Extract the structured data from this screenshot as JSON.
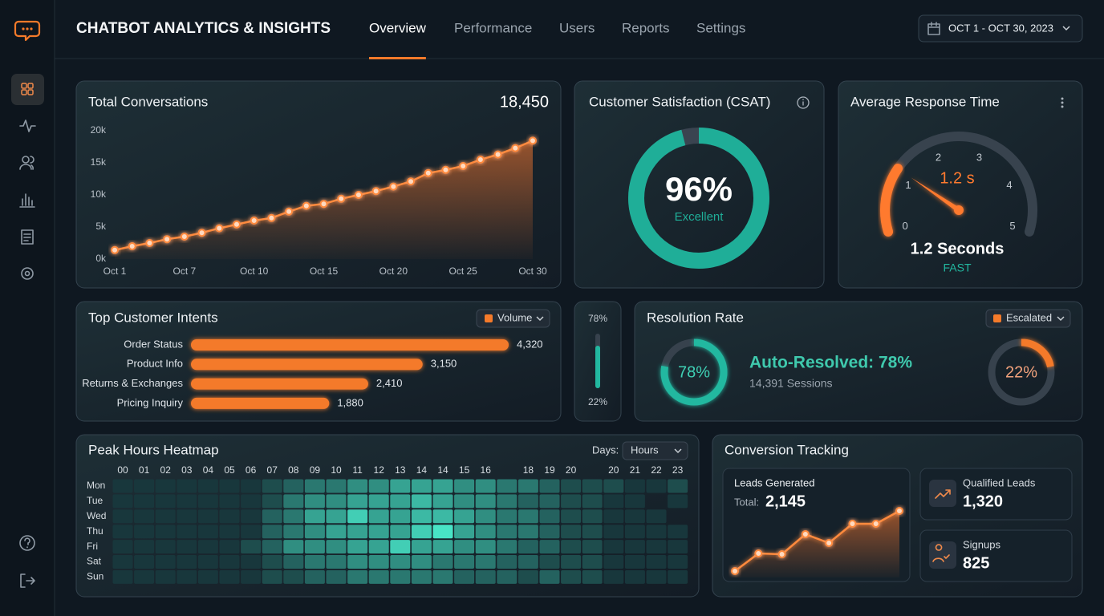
{
  "header": {
    "title": "CHATBOT ANALYTICS & INSIGHTS",
    "tabs": [
      "Overview",
      "Performance",
      "Users",
      "Reports",
      "Settings"
    ],
    "date_range": "OCT 1 - OCT 30, 2023"
  },
  "chart_data": [
    {
      "type": "line",
      "title": "Total Conversations",
      "headline": "18,450",
      "color": "#ff8a3d",
      "categories": [
        "Oct 1",
        null,
        null,
        null,
        "Oct 7",
        null,
        null,
        null,
        "Oct 10",
        null,
        null,
        null,
        "Oct 15",
        null,
        null,
        null,
        "Oct 20",
        null,
        null,
        null,
        "Oct 25",
        null,
        null,
        null,
        "Oct 30"
      ],
      "values": [
        1400,
        2000,
        2500,
        3100,
        3500,
        4100,
        4800,
        5400,
        6000,
        6400,
        7400,
        8300,
        8600,
        9400,
        10000,
        10600,
        11300,
        12100,
        13400,
        13900,
        14500,
        15500,
        16300,
        17300,
        18450
      ],
      "ylim": [
        0,
        20000
      ],
      "yticks": [
        {
          "value": 0,
          "label": "0k"
        },
        {
          "value": 5000,
          "label": "5k"
        },
        {
          "value": 10000,
          "label": "10k"
        },
        {
          "value": 15000,
          "label": "15k"
        },
        {
          "value": 20000,
          "label": "20k"
        }
      ],
      "grid": false
    },
    {
      "type": "donut",
      "title": "Customer Satisfaction (CSAT)",
      "values": [
        96
      ],
      "value_labels": [
        "96%"
      ],
      "caption": "Excellent",
      "ylim": [
        0,
        100
      ],
      "color": "#1fae98"
    },
    {
      "type": "gauge",
      "title": "Average Response Time",
      "values": [
        1.2
      ],
      "value_labels": [
        "1.2 s"
      ],
      "caption": "1.2 Seconds",
      "status": "FAST",
      "xlim": [
        0,
        5
      ],
      "xticks": [
        0,
        1,
        2,
        3,
        4,
        5
      ],
      "color": "#ff7a2f"
    },
    {
      "type": "hbar",
      "title": "Top Customer Intents",
      "filter": "Volume",
      "categories": [
        "Order Status",
        "Product Info",
        "Returns & Exchanges",
        "Pricing Inquiry"
      ],
      "values": [
        4320,
        3150,
        2410,
        1880
      ],
      "value_labels": [
        "4,320",
        "3,150",
        "2,410",
        "1,880"
      ],
      "color": "#f47a2a"
    },
    {
      "type": "split",
      "title": "Resolution Rate",
      "filter": "Escalated",
      "headline": "Auto-Resolved: 78%",
      "sessions": "14,391 Sessions",
      "values": [
        78,
        22
      ],
      "value_labels": [
        "78%",
        "22%"
      ],
      "colors": [
        "#22b8a0",
        "#f47a2a"
      ]
    },
    {
      "type": "heatmap",
      "title": "Peak Hours Heatmap",
      "filter_label": "Days:",
      "filter": "Hours",
      "categories": [
        "00",
        "01",
        "02",
        "03",
        "04",
        "05",
        "06",
        "07",
        "08",
        "09",
        "10",
        "11",
        "12",
        "13",
        "14",
        "14",
        "15",
        "16",
        null,
        "18",
        "19",
        "20",
        null,
        "20",
        "21",
        "22",
        "23"
      ],
      "rows": [
        "Mon",
        "Tue",
        "Wed",
        "Thu",
        "Fri",
        "Sat",
        "Sun"
      ],
      "values": [
        [
          1,
          1,
          1,
          1,
          1,
          1,
          1,
          2,
          3,
          4,
          4,
          5,
          5,
          6,
          6,
          6,
          5,
          5,
          4,
          4,
          3,
          2,
          2,
          2,
          1,
          1,
          2
        ],
        [
          1,
          1,
          1,
          1,
          1,
          1,
          1,
          2,
          4,
          5,
          5,
          6,
          6,
          6,
          7,
          6,
          5,
          5,
          4,
          3,
          3,
          2,
          2,
          1,
          1,
          null,
          1
        ],
        [
          1,
          1,
          1,
          1,
          1,
          1,
          1,
          3,
          4,
          6,
          6,
          8,
          6,
          6,
          7,
          7,
          6,
          5,
          4,
          4,
          3,
          2,
          2,
          1,
          1,
          1,
          null
        ],
        [
          1,
          1,
          1,
          1,
          1,
          1,
          1,
          3,
          4,
          5,
          6,
          6,
          6,
          6,
          8,
          9,
          6,
          5,
          4,
          4,
          3,
          2,
          2,
          1,
          1,
          1,
          1
        ],
        [
          1,
          1,
          1,
          1,
          1,
          1,
          2,
          3,
          5,
          5,
          5,
          6,
          6,
          8,
          6,
          6,
          5,
          5,
          4,
          3,
          3,
          2,
          2,
          1,
          1,
          1,
          1
        ],
        [
          1,
          1,
          1,
          1,
          1,
          1,
          1,
          2,
          3,
          4,
          4,
          5,
          5,
          5,
          5,
          4,
          4,
          4,
          3,
          3,
          2,
          2,
          2,
          1,
          1,
          1,
          1
        ],
        [
          1,
          1,
          1,
          1,
          1,
          1,
          1,
          2,
          2,
          3,
          3,
          4,
          4,
          4,
          4,
          4,
          3,
          3,
          3,
          2,
          3,
          2,
          2,
          1,
          1,
          1,
          1
        ]
      ]
    },
    {
      "type": "line",
      "title": "Leads Generated",
      "total_label": "Total:",
      "total": "2,145",
      "color": "#ff8a3d",
      "values": [
        13,
        35,
        34,
        59,
        48,
        72,
        72,
        88
      ]
    }
  ],
  "conversion": {
    "title": "Conversion Tracking",
    "cards": [
      {
        "label": "Qualified Leads",
        "value": "1,320"
      },
      {
        "label": "Signups",
        "value": "825"
      }
    ]
  }
}
